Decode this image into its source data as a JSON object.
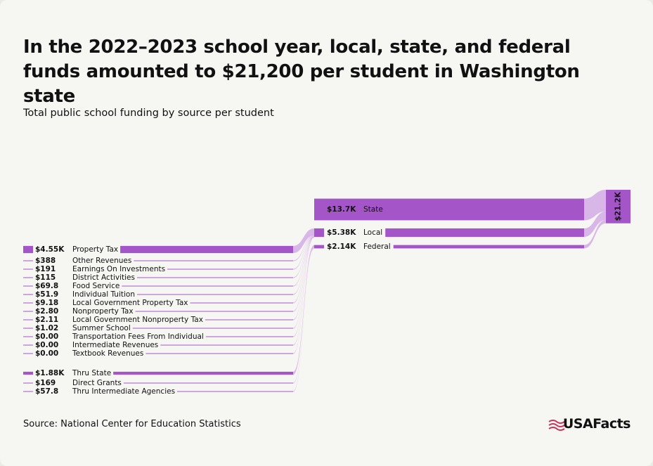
{
  "chart_data": {
    "type": "sankey",
    "title": "In the 2022–2023 school year, local, state, and federal funds amounted to $21,200 per student in Washington state",
    "subtitle": "Total public school funding by source per student",
    "source": "Source: National Center for Education Statistics",
    "brand": "USAFacts",
    "color": "#a455c8",
    "flow_color": "#d9b6e8",
    "total": {
      "value": 21200,
      "value_label": "$21.2K"
    },
    "groups": [
      {
        "name": "State",
        "value": 13700,
        "value_label": "$13.7K"
      },
      {
        "name": "Local",
        "value": 5380,
        "value_label": "$5.38K",
        "children": {
          "names": [
            "Property Tax",
            "Other Revenues",
            "Earnings On Investments",
            "District Activities",
            "Food Service",
            "Individual Tuition",
            "Local Government Property Tax",
            "Nonproperty Tax",
            "Local Government Nonproperty Tax",
            "Summer School",
            "Transportation Fees From Individual",
            "Intermediate Revenues",
            "Textbook Revenues"
          ],
          "values": [
            4550,
            388,
            191,
            115,
            69.8,
            51.9,
            9.18,
            2.8,
            2.11,
            1.02,
            0,
            0,
            0
          ],
          "value_labels": [
            "$4.55K",
            "$388",
            "$191",
            "$115",
            "$69.8",
            "$51.9",
            "$9.18",
            "$2.80",
            "$2.11",
            "$1.02",
            "$0.00",
            "$0.00",
            "$0.00"
          ]
        }
      },
      {
        "name": "Federal",
        "value": 2140,
        "value_label": "$2.14K",
        "children": {
          "names": [
            "Thru State",
            "Direct Grants",
            "Thru Intermediate Agencies"
          ],
          "values": [
            1880,
            169,
            57.8
          ],
          "value_labels": [
            "$1.88K",
            "$169",
            "$57.8"
          ]
        }
      }
    ]
  }
}
